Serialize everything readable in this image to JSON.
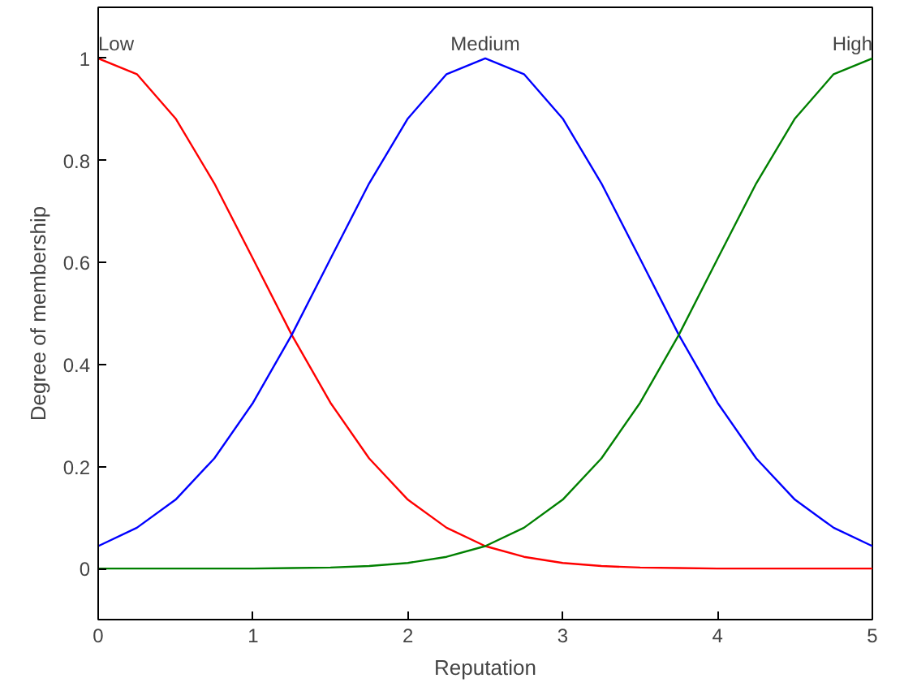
{
  "chart_data": {
    "type": "line",
    "xlabel": "Reputation",
    "ylabel": "Degree of membership",
    "x": [
      0,
      0.25,
      0.5,
      0.75,
      1,
      1.25,
      1.5,
      1.75,
      2,
      2.25,
      2.5,
      2.75,
      3,
      3.25,
      3.5,
      3.75,
      4,
      4.25,
      4.5,
      4.75,
      5
    ],
    "series": [
      {
        "color": "#ff0000",
        "values": [
          1,
          0.969,
          0.882,
          0.755,
          0.607,
          0.458,
          0.325,
          0.216,
          0.135,
          0.08,
          0.044,
          0.023,
          0.011,
          0.005,
          0.002,
          0.001,
          0,
          0,
          0,
          0,
          0
        ]
      },
      {
        "color": "#0000ff",
        "values": [
          0.044,
          0.08,
          0.135,
          0.216,
          0.325,
          0.458,
          0.607,
          0.755,
          0.882,
          0.969,
          1,
          0.969,
          0.882,
          0.755,
          0.607,
          0.458,
          0.325,
          0.216,
          0.135,
          0.08,
          0.044
        ]
      },
      {
        "color": "#008000",
        "values": [
          0,
          0,
          0,
          0,
          0,
          0.001,
          0.002,
          0.005,
          0.011,
          0.023,
          0.044,
          0.08,
          0.135,
          0.216,
          0.325,
          0.458,
          0.607,
          0.755,
          0.882,
          0.969,
          1
        ]
      }
    ],
    "annotations": [
      {
        "text": "Low",
        "x": 0,
        "y": 1
      },
      {
        "text": "Medium",
        "x": 2.5,
        "y": 1
      },
      {
        "text": "High",
        "x": 5,
        "y": 1
      }
    ],
    "xlim": [
      0,
      5
    ],
    "ylim": [
      -0.1,
      1.1
    ],
    "xticks": [
      0,
      1,
      2,
      3,
      4,
      5
    ],
    "yticks": [
      0,
      0.2,
      0.4,
      0.6,
      0.8,
      1
    ],
    "grid": false,
    "marker": "none",
    "line_style": "solid"
  }
}
